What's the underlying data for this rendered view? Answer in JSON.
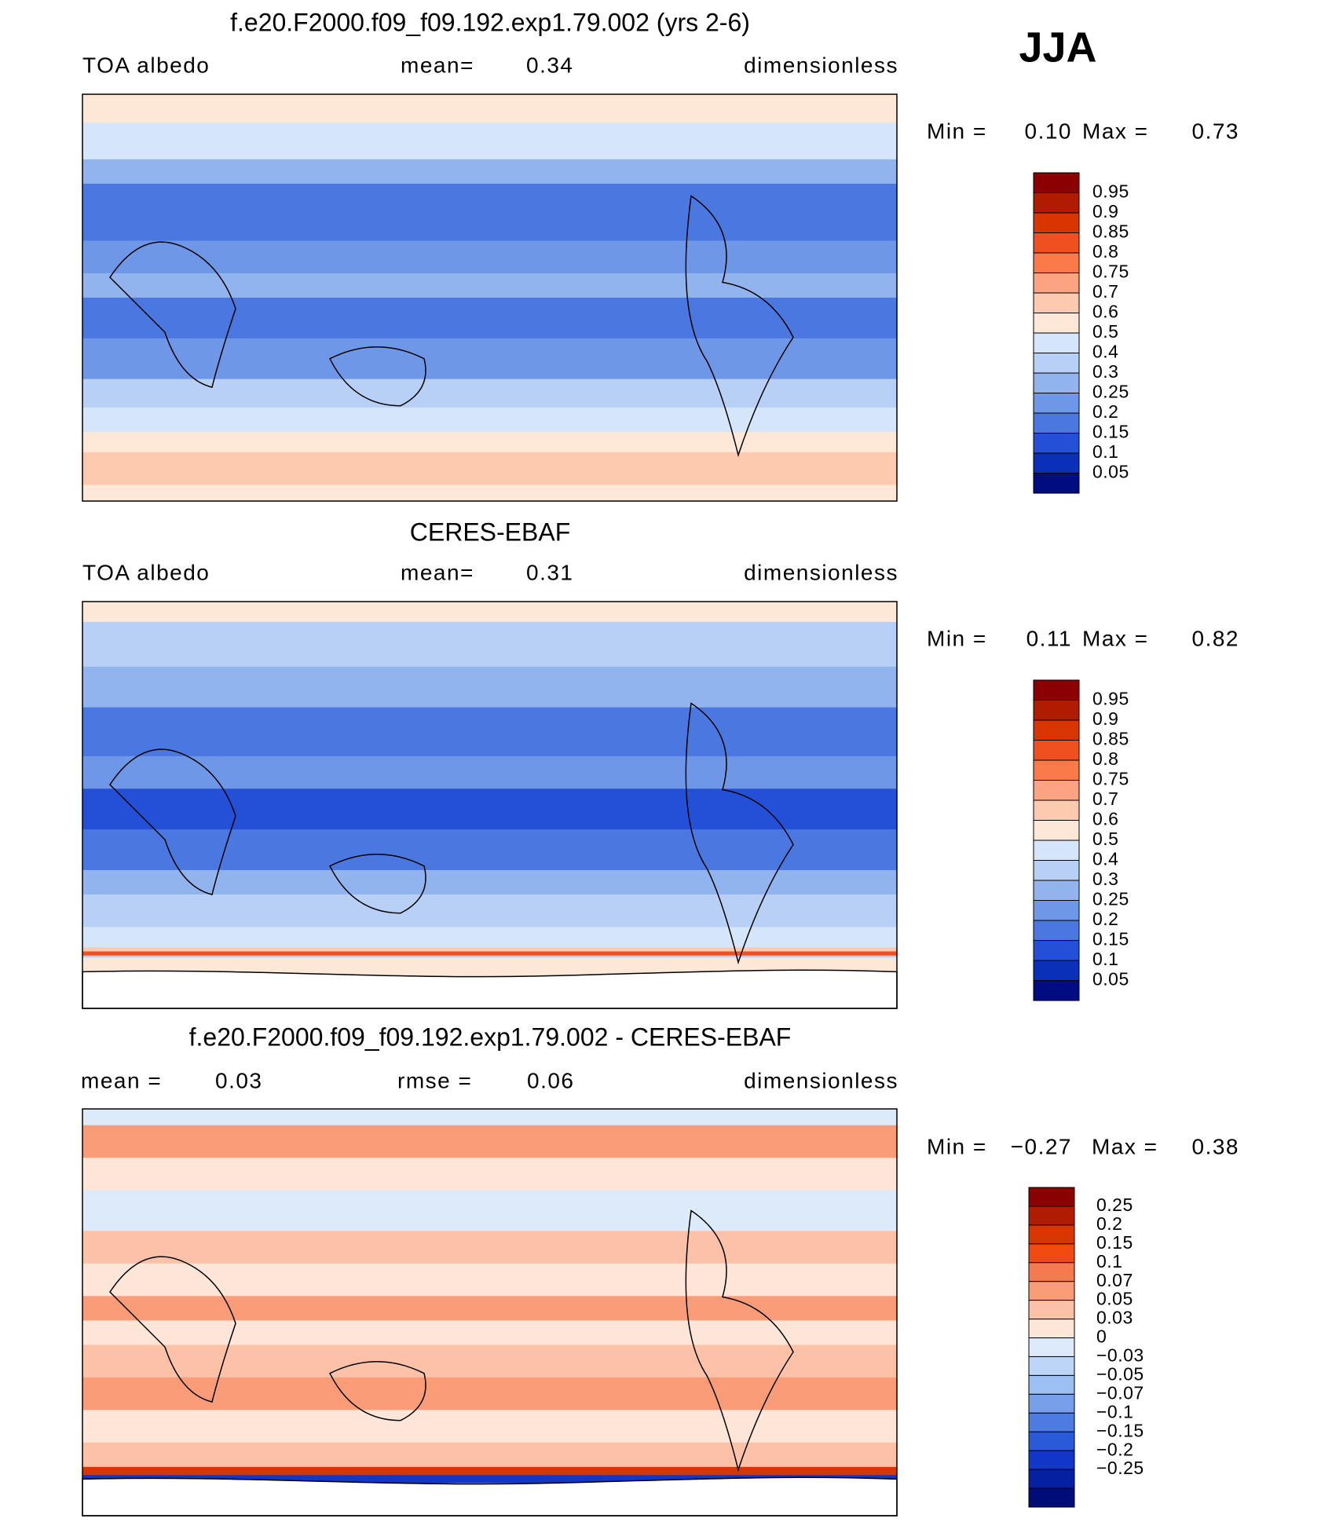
{
  "figure_label": "JJA",
  "panels": [
    {
      "title": "f.e20.F2000.f09_f09.192.exp1.79.002 (yrs 2-6)",
      "left_label": "TOA  albedo",
      "mean_label": "mean=",
      "mean_value": "0.34",
      "units": "dimensionless",
      "min_label": "Min =",
      "min_value": "0.10",
      "max_label": "Max =",
      "max_value": "0.73",
      "colorbar": {
        "labels": [
          "0.95",
          "0.9",
          "0.85",
          "0.8",
          "0.75",
          "0.7",
          "0.6",
          "0.5",
          "0.4",
          "0.3",
          "0.25",
          "0.2",
          "0.15",
          "0.1",
          "0.05"
        ],
        "colors": [
          "#8b0000",
          "#b01c00",
          "#d93500",
          "#f05020",
          "#fb7a4a",
          "#fca482",
          "#fdcab0",
          "#fde8d8",
          "#d6e6fa",
          "#b8d0f5",
          "#92b4ee",
          "#6f97e8",
          "#4a77e0",
          "#2450d8",
          "#0a2fb8",
          "#000c80"
        ]
      }
    },
    {
      "title": "CERES-EBAF",
      "left_label": "TOA  albedo",
      "mean_label": "mean=",
      "mean_value": "0.31",
      "units": "dimensionless",
      "min_label": "Min =",
      "min_value": "0.11",
      "max_label": "Max =",
      "max_value": "0.82",
      "colorbar": {
        "labels": [
          "0.95",
          "0.9",
          "0.85",
          "0.8",
          "0.75",
          "0.7",
          "0.6",
          "0.5",
          "0.4",
          "0.3",
          "0.25",
          "0.2",
          "0.15",
          "0.1",
          "0.05"
        ],
        "colors": [
          "#8b0000",
          "#b01c00",
          "#d93500",
          "#f05020",
          "#fb7a4a",
          "#fca482",
          "#fdcab0",
          "#fde8d8",
          "#d6e6fa",
          "#b8d0f5",
          "#92b4ee",
          "#6f97e8",
          "#4a77e0",
          "#2450d8",
          "#0a2fb8",
          "#000c80"
        ]
      }
    },
    {
      "title": "f.e20.F2000.f09_f09.192.exp1.79.002 - CERES-EBAF",
      "mean_label": "mean =",
      "mean_value": "0.03",
      "rmse_label": "rmse =",
      "rmse_value": "0.06",
      "units": "dimensionless",
      "min_label": "Min =",
      "min_value": "−0.27",
      "max_label": "Max =",
      "max_value": "0.38",
      "colorbar": {
        "labels": [
          "0.25",
          "0.2",
          "0.15",
          "0.1",
          "0.07",
          "0.05",
          "0.03",
          "0",
          "−0.03",
          "−0.05",
          "−0.07",
          "−0.1",
          "−0.15",
          "−0.2",
          "−0.25"
        ],
        "colors": [
          "#8b0000",
          "#b01c00",
          "#d93500",
          "#f04a10",
          "#f67a50",
          "#fa9c78",
          "#fcc2a8",
          "#fde6d8",
          "#dceafa",
          "#bdd6f7",
          "#9cc0f2",
          "#789fe9",
          "#4d7ce0",
          "#2b5ad8",
          "#1236c8",
          "#0520a0",
          "#000c78"
        ]
      }
    }
  ]
}
